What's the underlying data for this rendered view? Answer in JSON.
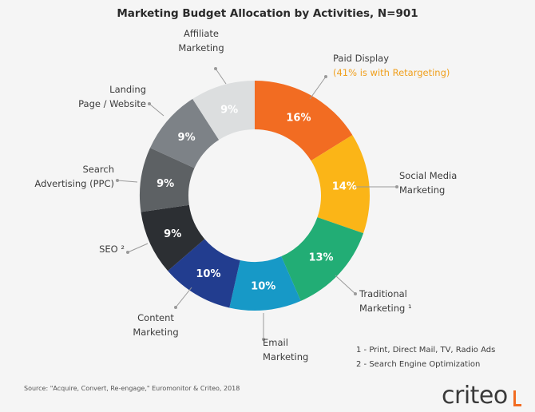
{
  "chart_data": {
    "type": "pie",
    "title": "Marketing Budget Allocation by Activities, N=901",
    "slices": [
      {
        "label_lines": [
          "Paid Display"
        ],
        "sub": "(41% is with Retargeting)",
        "value": 16,
        "display": "16%",
        "color": "#f26c22"
      },
      {
        "label_lines": [
          "Social Media",
          "Marketing"
        ],
        "value": 14,
        "display": "14%",
        "color": "#fbb517"
      },
      {
        "label_lines": [
          "Traditional",
          "Marketing ¹"
        ],
        "value": 13,
        "display": "13%",
        "color": "#22ad75"
      },
      {
        "label_lines": [
          "Email",
          "Marketing"
        ],
        "value": 10,
        "display": "10%",
        "color": "#1799c7"
      },
      {
        "label_lines": [
          "Content",
          "Marketing"
        ],
        "value": 10,
        "display": "10%",
        "color": "#223d8f"
      },
      {
        "label_lines": [
          "SEO ²"
        ],
        "value": 9,
        "display": "9%",
        "color": "#2c2f33"
      },
      {
        "label_lines": [
          "Search",
          "Advertising (PPC)"
        ],
        "value": 9,
        "display": "9%",
        "color": "#5d6164"
      },
      {
        "label_lines": [
          "Landing",
          "Page / Website"
        ],
        "value": 9,
        "display": "9%",
        "color": "#7d8287"
      },
      {
        "label_lines": [
          "Affiliate",
          "Marketing"
        ],
        "value": 9,
        "display": "9%",
        "color": "#dcdedf"
      }
    ]
  },
  "footnotes": {
    "fn1": "1 - Print, Direct Mail, TV, Radio Ads",
    "fn2": "2 - Search Engine Optimization"
  },
  "source": "Source: \"Acquire, Convert, Re-engage,\" Euromonitor & Criteo, 2018",
  "logo_text": "criteo"
}
